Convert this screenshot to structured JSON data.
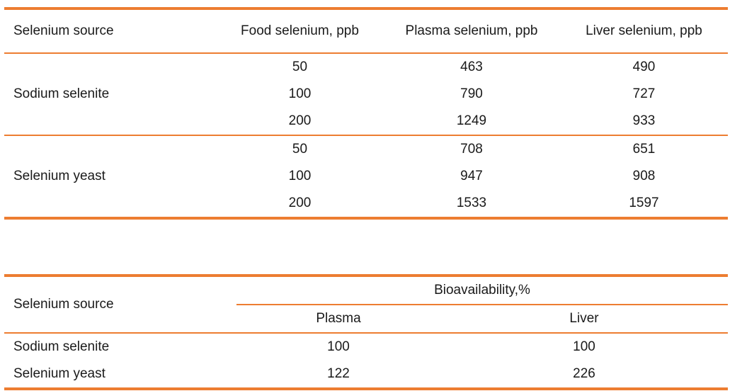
{
  "accent_color": "#ED7D31",
  "text_color": "#1a1a1a",
  "selenium_levels_table": {
    "columns": [
      "Selenium source",
      "Food selenium, ppb",
      "Plasma selenium, ppb",
      "Liver selenium, ppb"
    ],
    "groups": [
      {
        "source": "Sodium selenite",
        "rows": [
          {
            "food": "50",
            "plasma": "463",
            "liver": "490"
          },
          {
            "food": "100",
            "plasma": "790",
            "liver": "727"
          },
          {
            "food": "200",
            "plasma": "1249",
            "liver": "933"
          }
        ]
      },
      {
        "source": "Selenium yeast",
        "rows": [
          {
            "food": "50",
            "plasma": "708",
            "liver": "651"
          },
          {
            "food": "100",
            "plasma": "947",
            "liver": "908"
          },
          {
            "food": "200",
            "plasma": "1533",
            "liver": "1597"
          }
        ]
      }
    ]
  },
  "bioavailability_table": {
    "row_header": "Selenium source",
    "span_header": "Bioavailability,%",
    "sub_columns": [
      "Plasma",
      "Liver"
    ],
    "rows": [
      {
        "source": "Sodium selenite",
        "plasma": "100",
        "liver": "100"
      },
      {
        "source": "Selenium yeast",
        "plasma": "122",
        "liver": "226"
      }
    ]
  }
}
